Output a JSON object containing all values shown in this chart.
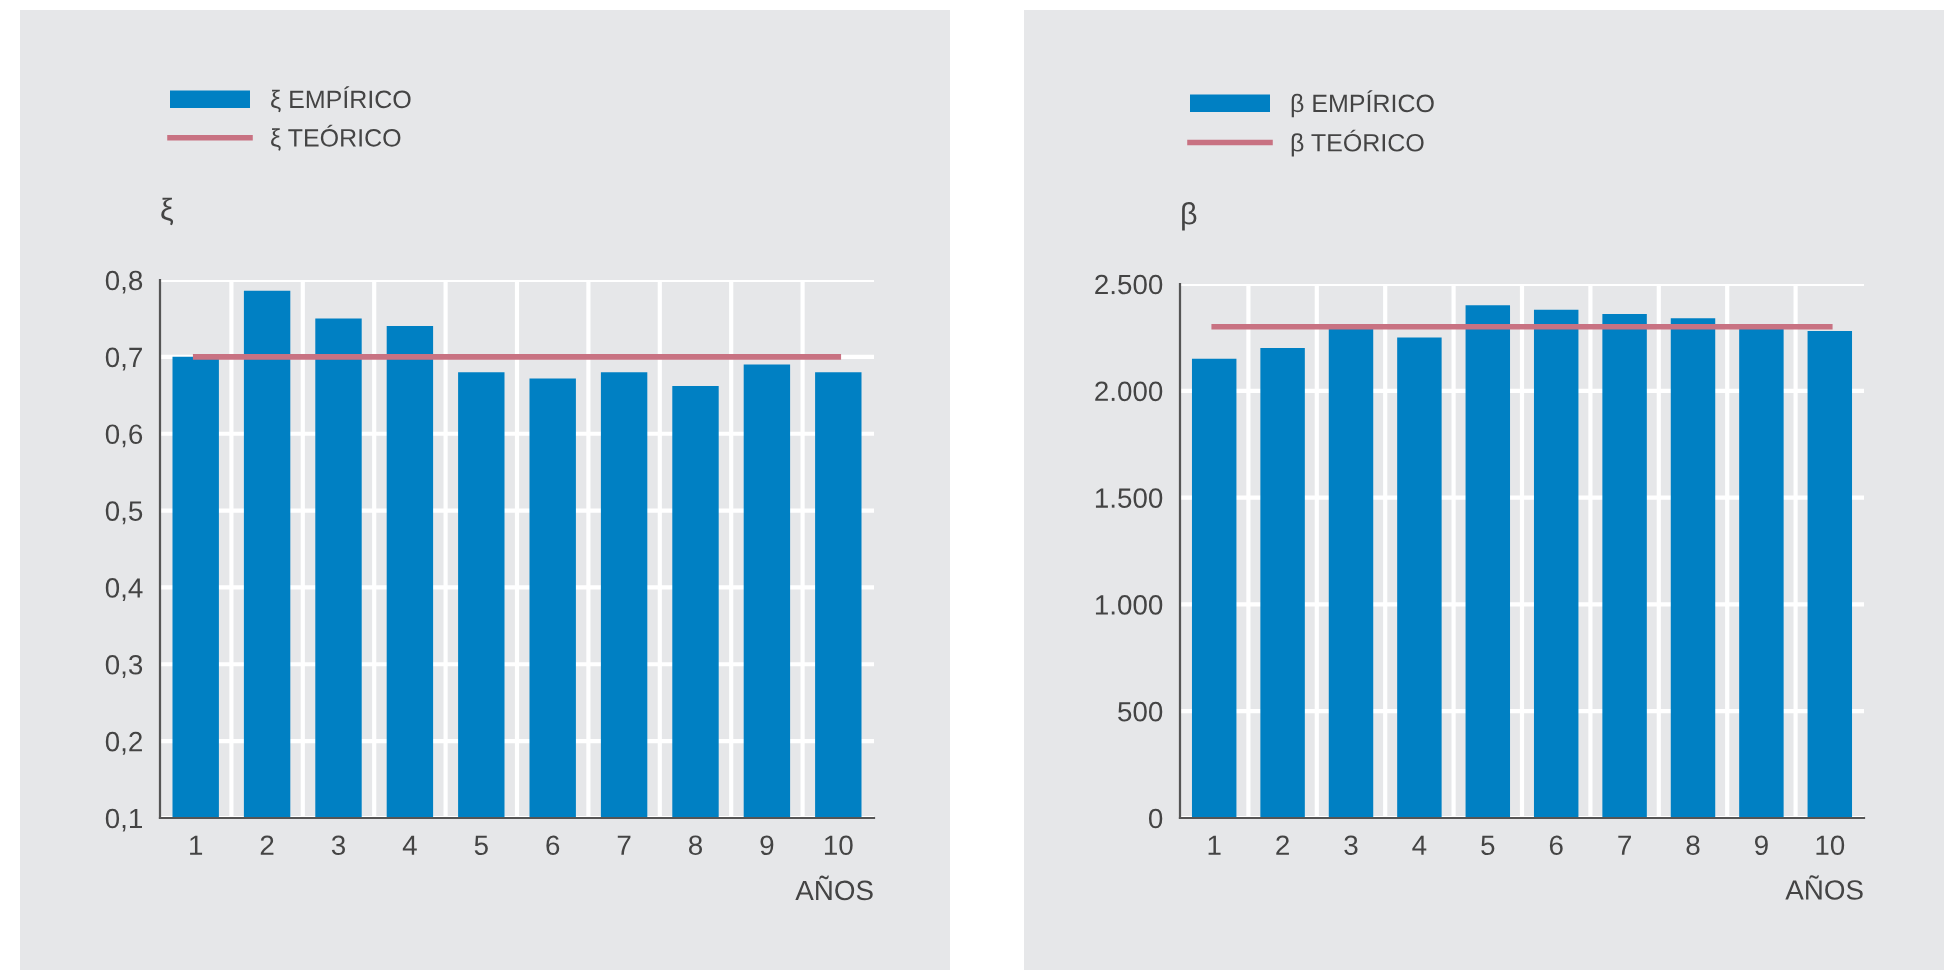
{
  "chart_data": [
    {
      "type": "bar",
      "ylabel": "ξ",
      "xlabel": "AÑOS",
      "categories": [
        "1",
        "2",
        "3",
        "4",
        "5",
        "6",
        "7",
        "8",
        "9",
        "10"
      ],
      "series": [
        {
          "name": "ξ EMPÍRICO",
          "color": "#0080c3",
          "values": [
            0.7,
            0.786,
            0.75,
            0.74,
            0.68,
            0.672,
            0.68,
            0.662,
            0.69,
            0.68
          ]
        },
        {
          "name": "ξ TEÓRICO",
          "type": "line",
          "color": "#c87282",
          "values": [
            0.7,
            0.7,
            0.7,
            0.7,
            0.7,
            0.7,
            0.7,
            0.7,
            0.7,
            0.7
          ]
        }
      ],
      "ylim": [
        0.1,
        0.8
      ],
      "yticks": [
        {
          "value": 0.1,
          "label": "0,1"
        },
        {
          "value": 0.2,
          "label": "0,2"
        },
        {
          "value": 0.3,
          "label": "0,3"
        },
        {
          "value": 0.4,
          "label": "0,4"
        },
        {
          "value": 0.5,
          "label": "0,5"
        },
        {
          "value": 0.6,
          "label": "0,6"
        },
        {
          "value": 0.7,
          "label": "0,7"
        },
        {
          "value": 0.8,
          "label": "0,8"
        }
      ],
      "grid": true,
      "legend": "top left",
      "marker": "none",
      "line_style": "solid"
    },
    {
      "type": "bar",
      "ylabel": "β",
      "xlabel": "AÑOS",
      "categories": [
        "1",
        "2",
        "3",
        "4",
        "5",
        "6",
        "7",
        "8",
        "9",
        "10"
      ],
      "series": [
        {
          "name": "β EMPÍRICO",
          "color": "#0080c3",
          "values": [
            2150,
            2200,
            2300,
            2250,
            2400,
            2380,
            2360,
            2340,
            2300,
            2280
          ]
        },
        {
          "name": "β TEÓRICO",
          "type": "line",
          "color": "#c87282",
          "values": [
            2300,
            2300,
            2300,
            2300,
            2300,
            2300,
            2300,
            2300,
            2300,
            2300
          ]
        }
      ],
      "ylim": [
        0,
        2500
      ],
      "yticks": [
        0,
        500,
        {
          "value": 1000,
          "label": "1.000"
        },
        {
          "value": 1500,
          "label": "1.500"
        },
        {
          "value": 2000,
          "label": "2.000"
        },
        {
          "value": 2500,
          "label": "2.500"
        }
      ],
      "grid": true,
      "legend": "top left",
      "marker": "none",
      "line_style": "solid"
    }
  ]
}
